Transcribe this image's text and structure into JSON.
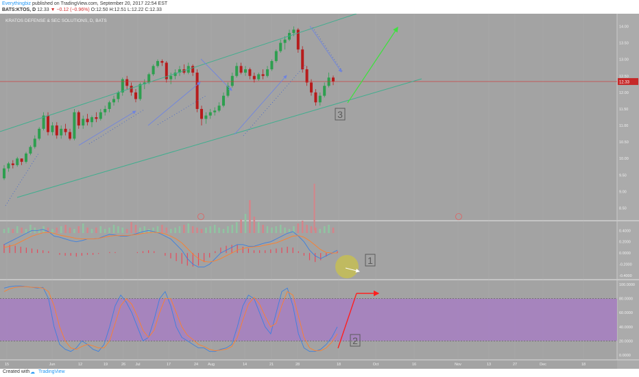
{
  "header": {
    "author": "Everythingbiz",
    "published_text": "published on TradingView.com, September 20, 2017 22:54 EST",
    "symbol_line": {
      "symbol": "BATS:KTOS, D",
      "last": "12.33",
      "change": "▼ −0.12 (−0.96%)",
      "o_label": "O:",
      "o": "12.50",
      "h_label": "H:",
      "h": "12.51",
      "l_label": "L:",
      "l": "12.22",
      "c_label": "C:",
      "c": "12.33"
    }
  },
  "chart_title": "KRATOS DEFENSE & SEC SOLUTIONS, D, BATS",
  "footer": {
    "created_with": "Created with",
    "brand": "TradingView"
  },
  "colors": {
    "background": "#a3a3a3",
    "up": "#2e9e4f",
    "down": "#b71c1c",
    "channel": "#3fae8e",
    "blue_arrow": "#6f84e0",
    "green_arrow": "#3fe03f",
    "red_arrow": "#ff1f1f",
    "stoch_band": "#a77fc2",
    "price_line": "#d32f2f",
    "price_tag": "#c62828"
  },
  "annotations": [
    {
      "id": "label-3",
      "text": "3"
    },
    {
      "id": "label-1",
      "text": "1"
    },
    {
      "id": "label-2",
      "text": "2"
    }
  ],
  "chart_data": [
    {
      "type": "candlestick",
      "title": "KRATOS DEFENSE & SEC SOLUTIONS, D, BATS",
      "x_ticks": [
        "15",
        "Jun",
        "12",
        "19",
        "26",
        "Jul",
        "17",
        "24",
        "Aug",
        "14",
        "21",
        "28",
        "Sep",
        "18",
        "Oct",
        "16",
        "Nov",
        "13",
        "27",
        "Dec",
        "18"
      ],
      "y_ticks": [
        "14.00",
        "13.50",
        "13.00",
        "12.50",
        "12.00",
        "11.50",
        "11.00",
        "10.50",
        "10.00",
        "9.50",
        "9.00",
        "8.50"
      ],
      "ylim": [
        8.2,
        14.3
      ],
      "last_price": "12.33",
      "candles": [
        [
          9.4,
          9.8,
          9.35,
          9.7
        ],
        [
          9.7,
          9.9,
          9.6,
          9.85
        ],
        [
          9.85,
          9.95,
          9.7,
          9.8
        ],
        [
          9.8,
          10.05,
          9.75,
          10.0
        ],
        [
          10.0,
          10.0,
          9.8,
          9.9
        ],
        [
          9.9,
          10.2,
          9.85,
          10.15
        ],
        [
          10.15,
          10.4,
          10.1,
          10.35
        ],
        [
          10.35,
          10.7,
          10.3,
          10.6
        ],
        [
          10.6,
          10.95,
          10.55,
          10.9
        ],
        [
          10.9,
          11.4,
          10.85,
          11.3
        ],
        [
          11.3,
          11.4,
          10.7,
          10.8
        ],
        [
          10.8,
          11.1,
          10.7,
          11.0
        ],
        [
          11.0,
          11.1,
          10.6,
          10.7
        ],
        [
          10.7,
          11.0,
          10.6,
          10.9
        ],
        [
          10.9,
          11.05,
          10.7,
          10.8
        ],
        [
          10.8,
          10.9,
          10.55,
          10.6
        ],
        [
          10.6,
          11.5,
          10.55,
          11.4
        ],
        [
          11.4,
          11.45,
          10.9,
          11.0
        ],
        [
          11.0,
          11.3,
          10.9,
          11.2
        ],
        [
          11.2,
          11.35,
          11.0,
          11.1
        ],
        [
          11.1,
          11.3,
          10.95,
          11.25
        ],
        [
          11.25,
          11.4,
          11.1,
          11.2
        ],
        [
          11.2,
          11.5,
          11.15,
          11.4
        ],
        [
          11.4,
          11.6,
          11.3,
          11.5
        ],
        [
          11.5,
          11.75,
          11.4,
          11.7
        ],
        [
          11.7,
          11.9,
          11.6,
          11.8
        ],
        [
          11.8,
          12.05,
          11.7,
          12.0
        ],
        [
          12.0,
          12.45,
          11.9,
          12.4
        ],
        [
          12.4,
          12.5,
          12.1,
          12.2
        ],
        [
          12.2,
          12.3,
          11.9,
          12.0
        ],
        [
          12.0,
          12.1,
          11.7,
          11.8
        ],
        [
          11.8,
          12.3,
          11.75,
          12.25
        ],
        [
          12.25,
          12.4,
          12.1,
          12.3
        ],
        [
          12.3,
          12.6,
          12.25,
          12.55
        ],
        [
          12.55,
          12.85,
          12.5,
          12.8
        ],
        [
          12.8,
          13.0,
          12.75,
          12.95
        ],
        [
          12.95,
          13.0,
          12.8,
          12.9
        ],
        [
          12.9,
          12.95,
          12.3,
          12.4
        ],
        [
          12.4,
          12.6,
          12.25,
          12.5
        ],
        [
          12.5,
          12.7,
          12.4,
          12.6
        ],
        [
          12.6,
          12.8,
          12.5,
          12.7
        ],
        [
          12.7,
          12.85,
          12.55,
          12.6
        ],
        [
          12.6,
          12.9,
          12.55,
          12.8
        ],
        [
          12.8,
          12.85,
          12.5,
          12.6
        ],
        [
          12.6,
          12.7,
          11.4,
          11.5
        ],
        [
          11.5,
          11.6,
          11.0,
          11.2
        ],
        [
          11.2,
          11.4,
          11.05,
          11.3
        ],
        [
          11.3,
          11.5,
          11.2,
          11.4
        ],
        [
          11.4,
          11.55,
          11.3,
          11.45
        ],
        [
          11.45,
          11.7,
          11.4,
          11.6
        ],
        [
          11.6,
          12.0,
          11.55,
          11.9
        ],
        [
          11.9,
          12.3,
          11.85,
          12.2
        ],
        [
          12.2,
          12.6,
          12.15,
          12.5
        ],
        [
          12.5,
          12.9,
          12.45,
          12.8
        ],
        [
          12.8,
          12.9,
          12.55,
          12.6
        ],
        [
          12.6,
          12.8,
          12.5,
          12.7
        ],
        [
          12.7,
          12.75,
          12.4,
          12.5
        ],
        [
          12.5,
          12.6,
          12.3,
          12.4
        ],
        [
          12.4,
          12.6,
          12.35,
          12.55
        ],
        [
          12.55,
          12.7,
          12.4,
          12.5
        ],
        [
          12.5,
          12.8,
          12.45,
          12.7
        ],
        [
          12.7,
          13.0,
          12.65,
          12.95
        ],
        [
          12.95,
          13.3,
          12.9,
          13.25
        ],
        [
          13.25,
          13.6,
          13.2,
          13.5
        ],
        [
          13.5,
          13.7,
          13.3,
          13.6
        ],
        [
          13.6,
          13.9,
          13.55,
          13.8
        ],
        [
          13.8,
          14.0,
          13.7,
          13.9
        ],
        [
          13.9,
          13.95,
          13.2,
          13.3
        ],
        [
          13.3,
          13.4,
          12.6,
          12.7
        ],
        [
          12.7,
          12.8,
          12.2,
          12.3
        ],
        [
          12.3,
          12.4,
          11.9,
          12.0
        ],
        [
          12.0,
          12.1,
          11.6,
          11.7
        ],
        [
          11.7,
          12.0,
          11.6,
          11.9
        ],
        [
          11.9,
          12.3,
          11.85,
          12.2
        ],
        [
          12.2,
          12.6,
          12.15,
          12.45
        ],
        [
          12.45,
          12.51,
          12.22,
          12.33
        ]
      ]
    },
    {
      "type": "line",
      "title": "MACD",
      "y_ticks": [
        "0.4000",
        "0.2000",
        "0.0000",
        "-0.2000",
        "-0.4000"
      ],
      "ylim": [
        -0.45,
        0.55
      ],
      "series": [
        {
          "values": [
            0.15,
            0.2,
            0.25,
            0.3,
            0.35,
            0.4,
            0.4,
            0.42,
            0.38,
            0.3,
            0.28,
            0.25,
            0.22,
            0.2,
            0.22,
            0.25,
            0.25,
            0.26,
            0.3,
            0.33,
            0.32,
            0.3,
            0.3,
            0.32,
            0.35,
            0.38,
            0.4,
            0.38,
            0.35,
            0.3,
            0.25,
            0.15,
            0.05,
            -0.1,
            -0.2,
            -0.25,
            -0.25,
            -0.2,
            -0.1,
            0.0,
            0.05,
            0.1,
            0.15,
            0.15,
            0.12,
            0.12,
            0.15,
            0.18,
            0.2,
            0.25,
            0.3,
            0.35,
            0.38,
            0.3,
            0.2,
            0.05,
            -0.05,
            -0.1,
            -0.05,
            0.0,
            0.05
          ]
        },
        {
          "values": [
            0.1,
            0.12,
            0.15,
            0.2,
            0.25,
            0.3,
            0.33,
            0.36,
            0.37,
            0.35,
            0.32,
            0.3,
            0.28,
            0.26,
            0.25,
            0.25,
            0.25,
            0.26,
            0.28,
            0.3,
            0.31,
            0.31,
            0.31,
            0.32,
            0.33,
            0.35,
            0.36,
            0.37,
            0.36,
            0.34,
            0.3,
            0.25,
            0.18,
            0.08,
            -0.02,
            -0.1,
            -0.15,
            -0.16,
            -0.14,
            -0.1,
            -0.05,
            0.0,
            0.05,
            0.08,
            0.1,
            0.11,
            0.12,
            0.14,
            0.16,
            0.18,
            0.22,
            0.26,
            0.3,
            0.31,
            0.28,
            0.22,
            0.14,
            0.06,
            0.01,
            0.0,
            0.0
          ]
        }
      ],
      "histogram": [
        0.1,
        0.09,
        0.08,
        0.07,
        0.06,
        0.05,
        0.04,
        0.03,
        0.02,
        0.0,
        -0.02,
        -0.03,
        -0.03,
        -0.04,
        -0.03,
        -0.02,
        -0.02,
        -0.01,
        0.0,
        0.01,
        0.01,
        0.0,
        0.0,
        0.0,
        0.01,
        0.02,
        0.03,
        0.02,
        0.0,
        -0.03,
        -0.06,
        -0.09,
        -0.12,
        -0.14,
        -0.15,
        -0.14,
        -0.1,
        -0.05,
        0.02,
        0.06,
        0.08,
        0.09,
        0.09,
        0.07,
        0.05,
        0.03,
        0.03,
        0.03,
        0.04,
        0.05,
        0.06,
        0.07,
        0.06,
        0.02,
        -0.03,
        -0.08,
        -0.1,
        -0.08,
        -0.04,
        -0.01,
        0.02
      ]
    },
    {
      "type": "line",
      "title": "Stochastic",
      "y_ticks": [
        "100.0000",
        "80.0000",
        "60.0000",
        "40.0000",
        "20.0000",
        "0.0000"
      ],
      "ylim": [
        -5,
        105
      ],
      "band": [
        20,
        80
      ],
      "series": [
        {
          "values": [
            95,
            97,
            98,
            98,
            97,
            96,
            95,
            96,
            80,
            40,
            15,
            8,
            5,
            10,
            20,
            15,
            8,
            5,
            15,
            40,
            70,
            85,
            75,
            60,
            40,
            20,
            25,
            50,
            80,
            90,
            70,
            40,
            25,
            20,
            15,
            10,
            10,
            5,
            5,
            8,
            10,
            15,
            40,
            70,
            85,
            80,
            60,
            40,
            30,
            60,
            90,
            95,
            70,
            30,
            10,
            5,
            5,
            8,
            15,
            25,
            40
          ]
        },
        {
          "values": [
            90,
            94,
            96,
            97,
            97,
            96,
            96,
            95,
            90,
            70,
            40,
            20,
            10,
            8,
            12,
            15,
            13,
            10,
            10,
            20,
            45,
            70,
            80,
            72,
            55,
            35,
            25,
            35,
            60,
            80,
            80,
            60,
            40,
            28,
            22,
            15,
            12,
            8,
            6,
            7,
            8,
            12,
            25,
            50,
            72,
            82,
            72,
            55,
            40,
            45,
            70,
            90,
            85,
            55,
            25,
            10,
            6,
            6,
            10,
            18,
            30
          ]
        }
      ]
    }
  ]
}
